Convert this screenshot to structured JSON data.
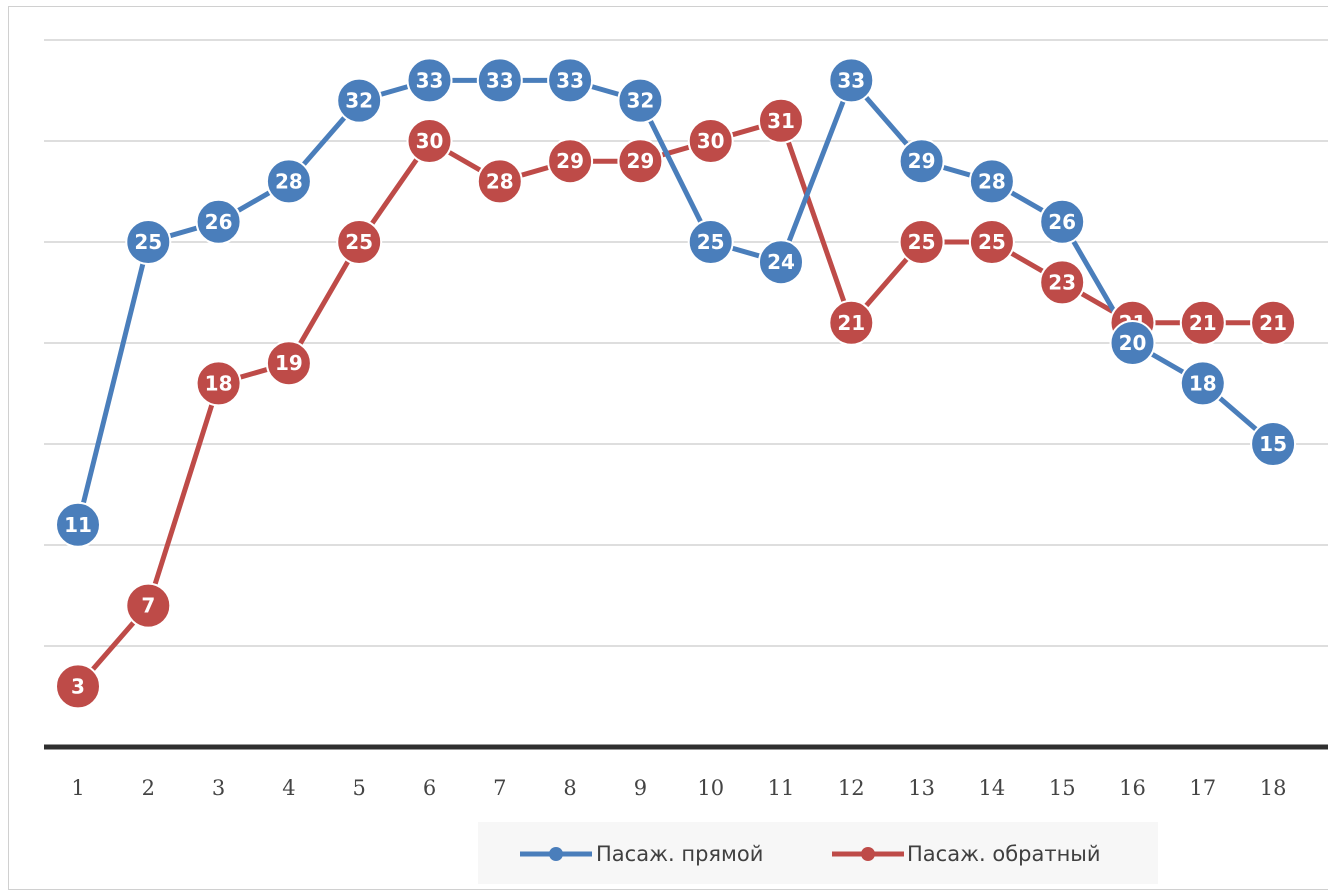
{
  "chart_data": {
    "type": "line",
    "title": "",
    "xlabel": "",
    "ylabel": "",
    "x": [
      1,
      2,
      3,
      4,
      5,
      6,
      7,
      8,
      9,
      10,
      11,
      12,
      13,
      14,
      15,
      16,
      17,
      18
    ],
    "ylim": [
      0,
      35
    ],
    "grid": true,
    "legend_position": "bottom",
    "series": [
      {
        "name": "Пасаж. прямой",
        "color": "#4a7ebb",
        "values": [
          11,
          25,
          26,
          28,
          32,
          33,
          33,
          33,
          32,
          25,
          24,
          33,
          29,
          28,
          26,
          20,
          18,
          15
        ]
      },
      {
        "name": "Пасаж. обратный",
        "color": "#be4b48",
        "values": [
          3,
          7,
          18,
          19,
          25,
          30,
          28,
          29,
          29,
          30,
          31,
          21,
          25,
          25,
          23,
          21,
          21,
          21
        ]
      }
    ]
  }
}
